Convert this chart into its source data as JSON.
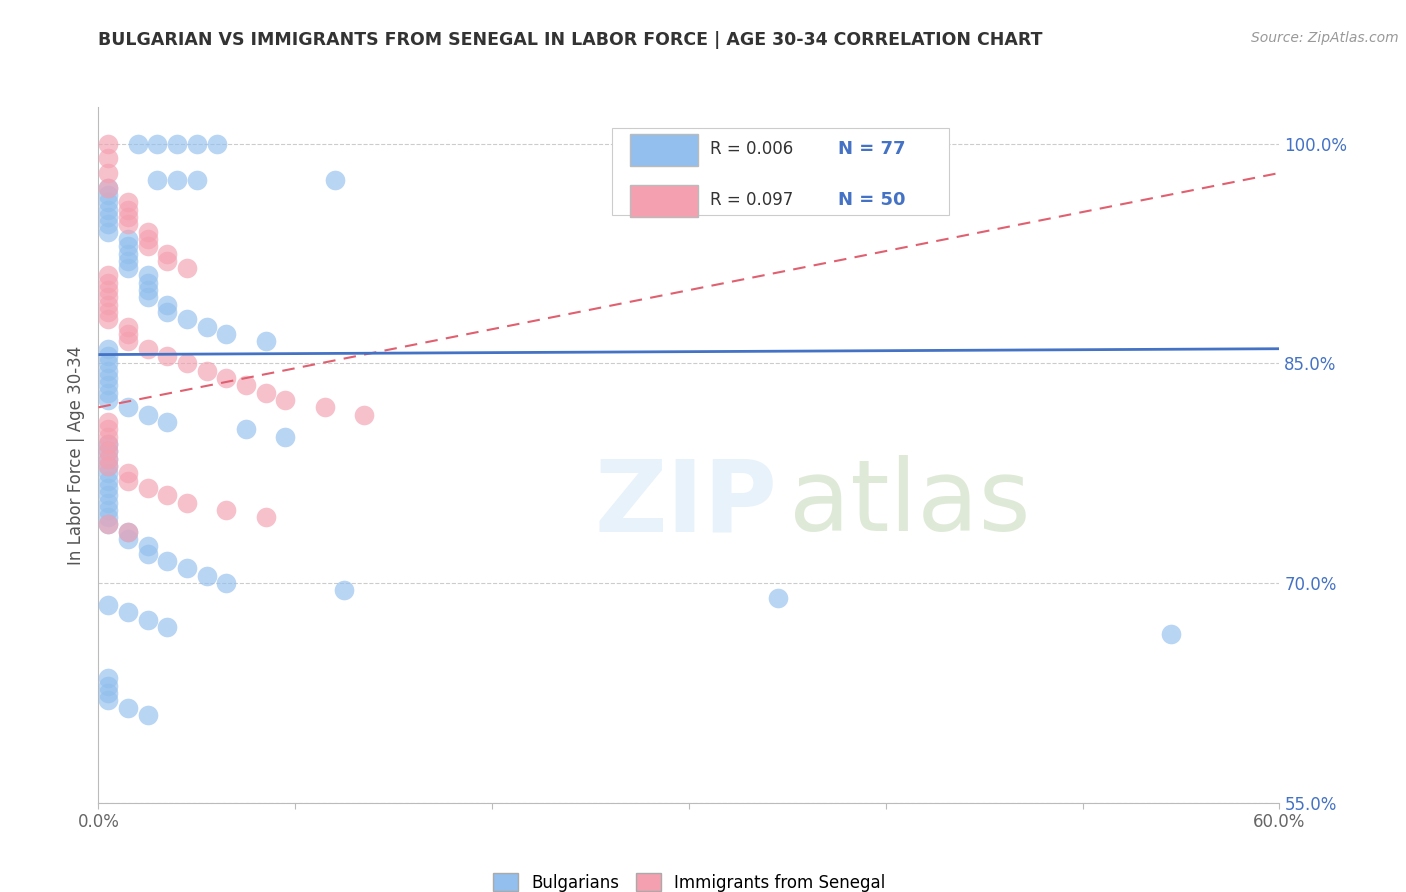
{
  "title": "BULGARIAN VS IMMIGRANTS FROM SENEGAL IN LABOR FORCE | AGE 30-34 CORRELATION CHART",
  "source": "Source: ZipAtlas.com",
  "ylabel": "In Labor Force | Age 30-34",
  "xlim": [
    0.0,
    0.6
  ],
  "ylim": [
    0.595,
    1.025
  ],
  "xticks": [
    0.0,
    0.1,
    0.2,
    0.3,
    0.4,
    0.5,
    0.6
  ],
  "xticklabels": [
    "0.0%",
    "",
    "",
    "",
    "",
    "",
    "60.0%"
  ],
  "yticks": [
    0.85,
    0.7,
    0.55
  ],
  "yticklabels": [
    "85.0%",
    "70.0%",
    "55.0%"
  ],
  "ytick_top": 1.0,
  "ytick_top_label": "100.0%",
  "legend_r_blue": "R = 0.006",
  "legend_n_blue": "N = 77",
  "legend_r_pink": "R = 0.097",
  "legend_n_pink": "N = 50",
  "blue_color": "#92BFED",
  "pink_color": "#F4A0B0",
  "blue_line_color": "#4472C4",
  "pink_line_color": "#E06070",
  "grid_color": "#CCCCCC",
  "blue_scatter_x": [
    0.02,
    0.03,
    0.04,
    0.05,
    0.06,
    0.03,
    0.04,
    0.05,
    0.12,
    0.005,
    0.005,
    0.005,
    0.005,
    0.005,
    0.005,
    0.005,
    0.015,
    0.015,
    0.015,
    0.015,
    0.015,
    0.025,
    0.025,
    0.025,
    0.025,
    0.035,
    0.035,
    0.045,
    0.055,
    0.065,
    0.085,
    0.005,
    0.005,
    0.005,
    0.005,
    0.005,
    0.005,
    0.005,
    0.005,
    0.015,
    0.025,
    0.035,
    0.075,
    0.095,
    0.005,
    0.005,
    0.005,
    0.005,
    0.005,
    0.005,
    0.005,
    0.005,
    0.005,
    0.005,
    0.005,
    0.005,
    0.015,
    0.015,
    0.025,
    0.025,
    0.035,
    0.045,
    0.055,
    0.065,
    0.125,
    0.345,
    0.005,
    0.015,
    0.025,
    0.035,
    0.545,
    0.005,
    0.005,
    0.005,
    0.005,
    0.015,
    0.025
  ],
  "blue_scatter_y": [
    1.0,
    1.0,
    1.0,
    1.0,
    1.0,
    0.975,
    0.975,
    0.975,
    0.975,
    0.97,
    0.965,
    0.96,
    0.955,
    0.95,
    0.945,
    0.94,
    0.935,
    0.93,
    0.925,
    0.92,
    0.915,
    0.91,
    0.905,
    0.9,
    0.895,
    0.89,
    0.885,
    0.88,
    0.875,
    0.87,
    0.865,
    0.86,
    0.855,
    0.85,
    0.845,
    0.84,
    0.835,
    0.83,
    0.825,
    0.82,
    0.815,
    0.81,
    0.805,
    0.8,
    0.795,
    0.79,
    0.785,
    0.78,
    0.775,
    0.77,
    0.765,
    0.76,
    0.755,
    0.75,
    0.745,
    0.74,
    0.735,
    0.73,
    0.725,
    0.72,
    0.715,
    0.71,
    0.705,
    0.7,
    0.695,
    0.69,
    0.685,
    0.68,
    0.675,
    0.67,
    0.665,
    0.635,
    0.63,
    0.625,
    0.62,
    0.615,
    0.61
  ],
  "pink_scatter_x": [
    0.005,
    0.005,
    0.005,
    0.005,
    0.015,
    0.015,
    0.015,
    0.015,
    0.025,
    0.025,
    0.025,
    0.035,
    0.035,
    0.045,
    0.005,
    0.005,
    0.005,
    0.005,
    0.005,
    0.005,
    0.005,
    0.015,
    0.015,
    0.015,
    0.025,
    0.035,
    0.045,
    0.055,
    0.065,
    0.075,
    0.085,
    0.095,
    0.115,
    0.135,
    0.005,
    0.005,
    0.005,
    0.005,
    0.005,
    0.005,
    0.005,
    0.015,
    0.015,
    0.025,
    0.035,
    0.045,
    0.065,
    0.085,
    0.005,
    0.015
  ],
  "pink_scatter_y": [
    1.0,
    0.99,
    0.98,
    0.97,
    0.96,
    0.955,
    0.95,
    0.945,
    0.94,
    0.935,
    0.93,
    0.925,
    0.92,
    0.915,
    0.91,
    0.905,
    0.9,
    0.895,
    0.89,
    0.885,
    0.88,
    0.875,
    0.87,
    0.865,
    0.86,
    0.855,
    0.85,
    0.845,
    0.84,
    0.835,
    0.83,
    0.825,
    0.82,
    0.815,
    0.81,
    0.805,
    0.8,
    0.795,
    0.79,
    0.785,
    0.78,
    0.775,
    0.77,
    0.765,
    0.76,
    0.755,
    0.75,
    0.745,
    0.74,
    0.735
  ],
  "blue_trend_y_at_0": 0.856,
  "blue_trend_y_at_60": 0.86,
  "pink_trend_y_at_0": 0.82,
  "pink_trend_y_at_60": 0.98
}
